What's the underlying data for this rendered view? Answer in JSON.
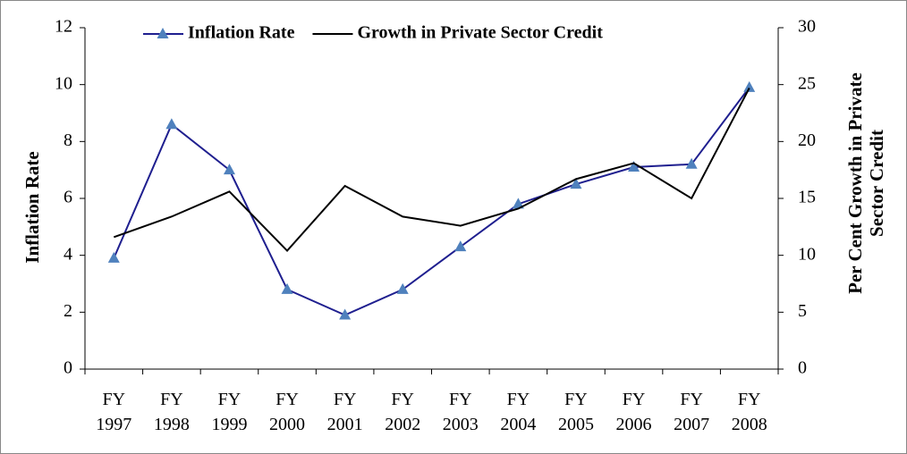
{
  "chart_data": {
    "type": "line",
    "categories": [
      "FY 1997",
      "FY 1998",
      "FY 1999",
      "FY 2000",
      "FY 2001",
      "FY 2002",
      "FY 2003",
      "FY 2004",
      "FY 2005",
      "FY 2006",
      "FY 2007",
      "FY 2008"
    ],
    "y_label": "Inflation Rate",
    "y2_label": "Per Cent Growth in Private Sector Credit",
    "series": [
      {
        "name": "Inflation Rate",
        "color": "#1f1f8f",
        "marker_color": "#4f81bd",
        "values": [
          3.9,
          8.6,
          7.0,
          2.8,
          1.9,
          2.8,
          4.3,
          5.8,
          6.5,
          7.1,
          7.2,
          9.9
        ]
      },
      {
        "name": "Growth in Private Sector Credit",
        "color": "#000000",
        "axis": "y2",
        "values": [
          11.6,
          13.4,
          15.6,
          10.4,
          16.1,
          13.4,
          12.6,
          14.1,
          16.7,
          18.1,
          15.0,
          24.7
        ]
      }
    ],
    "ylim": [
      0,
      12
    ],
    "yticks": [
      0,
      2,
      4,
      6,
      8,
      10,
      12
    ],
    "y2lim": [
      0,
      30
    ],
    "y2ticks": [
      0,
      5,
      10,
      15,
      20,
      25,
      30
    ],
    "grid": false,
    "legend": "top"
  }
}
